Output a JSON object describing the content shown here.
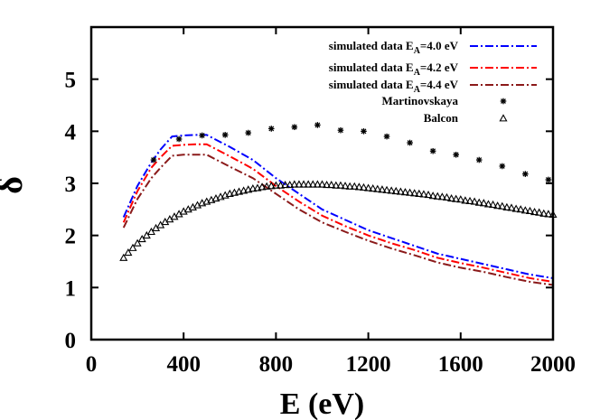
{
  "chart_data": {
    "type": "line",
    "xlabel": "E (eV)",
    "ylabel": "δ",
    "xlim": [
      0,
      2000
    ],
    "ylim": [
      0,
      6
    ],
    "x_ticks": [
      0,
      400,
      800,
      1200,
      1600,
      2000
    ],
    "y_ticks": [
      0,
      1,
      2,
      3,
      4,
      5
    ],
    "grid": false,
    "legend_position": "top-right",
    "series": [
      {
        "name_prefix": "simulated data E",
        "name_sub": "A",
        "name_suffix": "=4.0 eV",
        "kind": "line",
        "dash": "dash-dot",
        "color": "#0000ff",
        "x": [
          140,
          200,
          260,
          300,
          350,
          400,
          450,
          500,
          600,
          700,
          800,
          900,
          1000,
          1100,
          1200,
          1300,
          1400,
          1500,
          1600,
          1700,
          1800,
          1900,
          2000
        ],
        "y": [
          2.35,
          2.95,
          3.4,
          3.65,
          3.9,
          3.92,
          3.93,
          3.93,
          3.7,
          3.45,
          3.1,
          2.8,
          2.5,
          2.3,
          2.1,
          1.95,
          1.8,
          1.65,
          1.55,
          1.45,
          1.35,
          1.25,
          1.18
        ]
      },
      {
        "name_prefix": "simulated data E",
        "name_sub": "A",
        "name_suffix": "=4.2 eV",
        "kind": "line",
        "dash": "dash-dot",
        "color": "#ff0000",
        "x": [
          140,
          200,
          260,
          300,
          350,
          400,
          450,
          500,
          600,
          700,
          800,
          900,
          1000,
          1100,
          1200,
          1300,
          1400,
          1500,
          1600,
          1700,
          1800,
          1900,
          2000
        ],
        "y": [
          2.25,
          2.85,
          3.3,
          3.5,
          3.72,
          3.74,
          3.75,
          3.75,
          3.52,
          3.28,
          2.95,
          2.65,
          2.38,
          2.18,
          2.0,
          1.85,
          1.72,
          1.57,
          1.47,
          1.38,
          1.28,
          1.18,
          1.11
        ]
      },
      {
        "name_prefix": "simulated data E",
        "name_sub": "A",
        "name_suffix": "=4.4 eV",
        "kind": "line",
        "dash": "dash-dot",
        "color": "#8b1a1a",
        "x": [
          140,
          200,
          260,
          300,
          350,
          400,
          450,
          500,
          600,
          700,
          800,
          900,
          1000,
          1100,
          1200,
          1300,
          1400,
          1500,
          1600,
          1700,
          1800,
          1900,
          2000
        ],
        "y": [
          2.15,
          2.7,
          3.1,
          3.3,
          3.53,
          3.55,
          3.55,
          3.55,
          3.32,
          3.1,
          2.8,
          2.5,
          2.25,
          2.07,
          1.9,
          1.75,
          1.62,
          1.48,
          1.38,
          1.3,
          1.2,
          1.11,
          1.05
        ]
      },
      {
        "name": "Martinovskaya",
        "kind": "points",
        "marker": "asterisk",
        "color": "#000000",
        "x": [
          270,
          380,
          480,
          580,
          680,
          780,
          880,
          980,
          1080,
          1180,
          1280,
          1380,
          1480,
          1580,
          1680,
          1780,
          1880,
          1980
        ],
        "y": [
          3.45,
          3.85,
          3.92,
          3.93,
          3.97,
          4.05,
          4.08,
          4.12,
          4.02,
          4.0,
          3.9,
          3.78,
          3.62,
          3.55,
          3.45,
          3.33,
          3.18,
          3.07
        ]
      },
      {
        "name": "Balcon",
        "kind": "points",
        "marker": "triangle",
        "color": "#000000",
        "x": [
          140,
          160,
          180,
          200,
          220,
          240,
          260,
          280,
          300,
          320,
          340,
          360,
          380,
          400,
          420,
          440,
          460,
          480,
          500,
          520,
          540,
          560,
          580,
          600,
          620,
          640,
          660,
          680,
          700,
          720,
          740,
          760,
          780,
          800,
          820,
          840,
          860,
          880,
          900,
          920,
          940,
          960,
          980,
          1000,
          1020,
          1040,
          1060,
          1080,
          1100,
          1120,
          1140,
          1160,
          1180,
          1200,
          1220,
          1240,
          1260,
          1280,
          1300,
          1320,
          1340,
          1360,
          1380,
          1400,
          1420,
          1440,
          1460,
          1480,
          1500,
          1520,
          1540,
          1560,
          1580,
          1600,
          1620,
          1640,
          1660,
          1680,
          1700,
          1720,
          1740,
          1760,
          1780,
          1800,
          1820,
          1840,
          1860,
          1880,
          1900,
          1920,
          1940,
          1960,
          1980,
          2000
        ],
        "y": [
          1.57,
          1.67,
          1.76,
          1.85,
          1.93,
          2.0,
          2.07,
          2.14,
          2.2,
          2.26,
          2.31,
          2.36,
          2.41,
          2.46,
          2.5,
          2.54,
          2.58,
          2.62,
          2.65,
          2.68,
          2.71,
          2.74,
          2.77,
          2.8,
          2.82,
          2.84,
          2.86,
          2.88,
          2.9,
          2.91,
          2.93,
          2.94,
          2.95,
          2.96,
          2.96,
          2.97,
          2.97,
          2.98,
          2.98,
          2.98,
          2.98,
          2.98,
          2.98,
          2.98,
          2.97,
          2.97,
          2.96,
          2.96,
          2.95,
          2.94,
          2.94,
          2.93,
          2.92,
          2.91,
          2.9,
          2.89,
          2.88,
          2.87,
          2.86,
          2.85,
          2.84,
          2.83,
          2.82,
          2.81,
          2.8,
          2.79,
          2.78,
          2.76,
          2.75,
          2.74,
          2.73,
          2.71,
          2.7,
          2.69,
          2.67,
          2.66,
          2.65,
          2.63,
          2.62,
          2.6,
          2.59,
          2.57,
          2.56,
          2.54,
          2.53,
          2.51,
          2.5,
          2.48,
          2.47,
          2.45,
          2.44,
          2.42,
          2.41,
          2.4
        ]
      }
    ]
  }
}
